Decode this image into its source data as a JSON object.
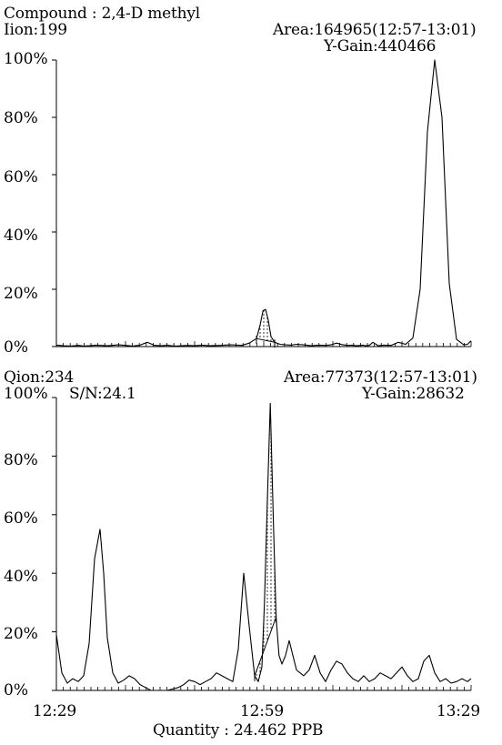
{
  "chart_data": [
    {
      "type": "line",
      "title": "Compound : 2,4-D methyl",
      "ion_label": "Iion:199",
      "area_label": "Area:164965(12:57-13:01)",
      "gain_label": "Y-Gain:440466",
      "ylim": [
        0,
        100
      ],
      "xlim": [
        "12:29",
        "13:29"
      ],
      "y_tick_labels": [
        "0%",
        "20%",
        "40%",
        "60%",
        "80%",
        "100%"
      ],
      "integrated_window": [
        "12:57",
        "13:01"
      ],
      "series": [
        {
          "x": [
            0,
            2,
            4,
            6,
            7.5,
            9,
            11,
            14,
            17,
            19,
            21,
            23,
            25,
            27,
            29,
            30.5,
            31.5,
            33,
            34.5,
            36,
            38,
            40,
            42,
            45,
            48,
            51,
            53,
            55,
            56,
            56.8,
            57.5,
            58.2,
            59,
            60,
            61.5,
            63,
            64.5,
            66,
            68,
            70,
            72,
            74,
            75.5,
            77,
            78.5,
            80,
            81.5,
            82.5,
            83.5,
            84.3,
            85,
            86,
            87,
            88.5,
            90,
            92,
            94,
            96,
            98,
            100,
            102,
            104,
            106,
            108,
            110,
            112,
            113,
            114
          ],
          "y": [
            0.5,
            0.3,
            0.2,
            0.4,
            0.2,
            0.3,
            0.5,
            0.3,
            0.6,
            0.4,
            0.2,
            0.5,
            1.5,
            0.4,
            0.3,
            0.5,
            0.3,
            0.2,
            0.3,
            0.4,
            0.3,
            0.5,
            0.3,
            0.4,
            0.6,
            0.4,
            1.2,
            2.8,
            7.5,
            12.5,
            13,
            9.5,
            3.5,
            1.5,
            0.8,
            0.6,
            0.5,
            0.8,
            0.6,
            0.3,
            0.5,
            0.4,
            0.6,
            1.2,
            0.7,
            0.4,
            0.5,
            0.3,
            0.4,
            0.5,
            0.3,
            0.4,
            1.5,
            0.3,
            0.5,
            0.4,
            1.5,
            0.8,
            3,
            20,
            75,
            100,
            80,
            22,
            2.5,
            0.6,
            0.8,
            2
          ]
        }
      ]
    },
    {
      "type": "line",
      "ion_label": "Qion:234",
      "sn_label": "S/N:24.1",
      "area_label": "Area:77373(12:57-13:01)",
      "gain_label": "Y-Gain:28632",
      "ylim": [
        0,
        100
      ],
      "xlim": [
        "12:29",
        "13:29"
      ],
      "y_tick_labels": [
        "0%",
        "20%",
        "40%",
        "60%",
        "80%",
        "100%"
      ],
      "x_tick_labels": [
        "12:29",
        "12:59",
        "13:29"
      ],
      "integrated_window": [
        "12:57",
        "13:01"
      ],
      "series": [
        {
          "x": [
            0,
            1.5,
            3,
            4.5,
            6,
            7.5,
            9,
            10.5,
            12,
            13,
            14,
            15.5,
            17,
            18.5,
            20,
            21.5,
            23,
            24.5,
            26,
            27.5,
            29,
            30.5,
            32,
            33.5,
            35,
            36.5,
            38,
            39.5,
            41,
            42.5,
            44,
            45.5,
            47,
            48.5,
            50,
            51.5,
            53,
            54.5,
            55.5,
            56.5,
            57.2,
            58,
            58.8,
            59.6,
            60.4,
            61.2,
            62,
            63,
            64,
            65,
            66,
            67,
            68,
            69.5,
            71,
            72.5,
            74,
            75.5,
            77,
            78.5,
            80,
            81.5,
            83,
            84.5,
            86,
            87.5,
            89,
            90.5,
            92,
            93.5,
            95,
            96.5,
            98,
            99.5,
            101,
            102.5,
            104,
            105.5,
            107,
            108.5,
            110,
            111.5,
            113,
            114
          ],
          "y": [
            19,
            6,
            2.5,
            4,
            3,
            5,
            16,
            45,
            55,
            40,
            18,
            6,
            2.5,
            3.5,
            5,
            4,
            2,
            1,
            0,
            0,
            0,
            0,
            0.5,
            1,
            2,
            3.5,
            3,
            2,
            3,
            4,
            6,
            5,
            4,
            3,
            14,
            40,
            22,
            5,
            3,
            8,
            30,
            65,
            98,
            60,
            25,
            12,
            9,
            12,
            17,
            12,
            7,
            6,
            5,
            7,
            12,
            6,
            3,
            7,
            10,
            9,
            6,
            4,
            3,
            5,
            3,
            4,
            6,
            5,
            4,
            6,
            8,
            5,
            3,
            4,
            10,
            12,
            6,
            3,
            4,
            2.5,
            3,
            4,
            3,
            4
          ]
        }
      ],
      "xlabel": "Quantity : 24.462 PPB"
    }
  ]
}
